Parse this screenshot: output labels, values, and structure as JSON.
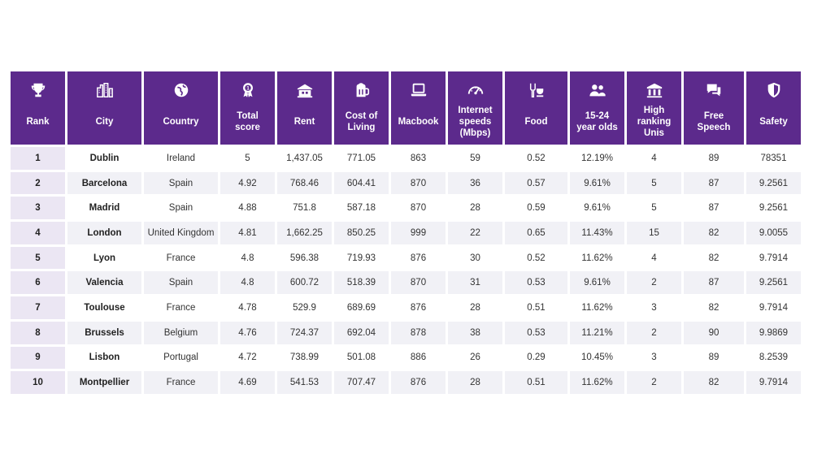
{
  "columns": [
    {
      "key": "rank",
      "label": "Rank",
      "icon": "trophy-icon"
    },
    {
      "key": "city",
      "label": "City",
      "icon": "city-buildings-icon"
    },
    {
      "key": "country",
      "label": "Country",
      "icon": "globe-icon"
    },
    {
      "key": "total",
      "label": "Total\nscore",
      "icon": "award-badge-icon"
    },
    {
      "key": "rent",
      "label": "Rent",
      "icon": "house-icon"
    },
    {
      "key": "col",
      "label": "Cost of\nLiving",
      "icon": "beer-mug-icon"
    },
    {
      "key": "macbook",
      "label": "Macbook",
      "icon": "laptop-icon"
    },
    {
      "key": "internet",
      "label": "Internet\nspeeds\n(Mbps)",
      "icon": "speedometer-icon"
    },
    {
      "key": "food",
      "label": "Food",
      "icon": "food-bowl-icon"
    },
    {
      "key": "youth",
      "label": "15-24\nyear olds",
      "icon": "people-icon"
    },
    {
      "key": "unis",
      "label": "High\nranking\nUnis",
      "icon": "university-icon"
    },
    {
      "key": "speech",
      "label": "Free\nSpeech",
      "icon": "speech-bubble-icon"
    },
    {
      "key": "safety",
      "label": "Safety",
      "icon": "shield-icon"
    }
  ],
  "rows": [
    [
      "1",
      "Dublin",
      "Ireland",
      "5",
      "1,437.05",
      "771.05",
      "863",
      "59",
      "0.52",
      "12.19%",
      "4",
      "89",
      "78351"
    ],
    [
      "2",
      "Barcelona",
      "Spain",
      "4.92",
      "768.46",
      "604.41",
      "870",
      "36",
      "0.57",
      "9.61%",
      "5",
      "87",
      "9.2561"
    ],
    [
      "3",
      "Madrid",
      "Spain",
      "4.88",
      "751.8",
      "587.18",
      "870",
      "28",
      "0.59",
      "9.61%",
      "5",
      "87",
      "9.2561"
    ],
    [
      "4",
      "London",
      "United Kingdom",
      "4.81",
      "1,662.25",
      "850.25",
      "999",
      "22",
      "0.65",
      "11.43%",
      "15",
      "82",
      "9.0055"
    ],
    [
      "5",
      "Lyon",
      "France",
      "4.8",
      "596.38",
      "719.93",
      "876",
      "30",
      "0.52",
      "11.62%",
      "4",
      "82",
      "9.7914"
    ],
    [
      "6",
      "Valencia",
      "Spain",
      "4.8",
      "600.72",
      "518.39",
      "870",
      "31",
      "0.53",
      "9.61%",
      "2",
      "87",
      "9.2561"
    ],
    [
      "7",
      "Toulouse",
      "France",
      "4.78",
      "529.9",
      "689.69",
      "876",
      "28",
      "0.51",
      "11.62%",
      "3",
      "82",
      "9.7914"
    ],
    [
      "8",
      "Brussels",
      "Belgium",
      "4.76",
      "724.37",
      "692.04",
      "878",
      "38",
      "0.53",
      "11.21%",
      "2",
      "90",
      "9.9869"
    ],
    [
      "9",
      "Lisbon",
      "Portugal",
      "4.72",
      "738.99",
      "501.08",
      "886",
      "26",
      "0.29",
      "10.45%",
      "3",
      "89",
      "8.2539"
    ],
    [
      "10",
      "Montpellier",
      "France",
      "4.69",
      "541.53",
      "707.47",
      "876",
      "28",
      "0.51",
      "11.62%",
      "2",
      "82",
      "9.7914"
    ]
  ],
  "colors": {
    "header": "#5c2a8c",
    "rank_cell": "#ebe6f3",
    "stripe": "#f1f1f6"
  }
}
